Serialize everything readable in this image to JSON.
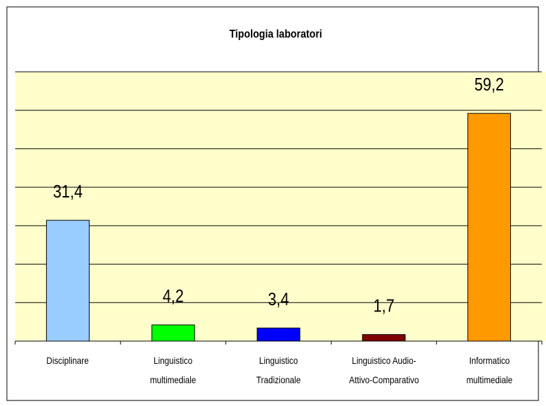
{
  "chart_data": {
    "type": "bar",
    "title": "Tipologia laboratori",
    "categories": [
      "Disciplinare",
      "Linguistico\nmultimediale",
      "Linguistico\nTradizionale",
      "Linguistico Audio-\nAttivo-Comparativo",
      "Informatico\nmultimediale"
    ],
    "values": [
      31.4,
      4.2,
      3.4,
      1.7,
      59.2
    ],
    "value_labels": [
      "31,4",
      "4,2",
      "3,4",
      "1,7",
      "59,2"
    ],
    "colors": [
      "#99ccff",
      "#00ff00",
      "#0000ff",
      "#800000",
      "#ff9900"
    ],
    "ylim": [
      0,
      70
    ],
    "yticks": [
      0,
      10,
      20,
      30,
      40,
      50,
      60,
      70
    ],
    "grid": true
  }
}
